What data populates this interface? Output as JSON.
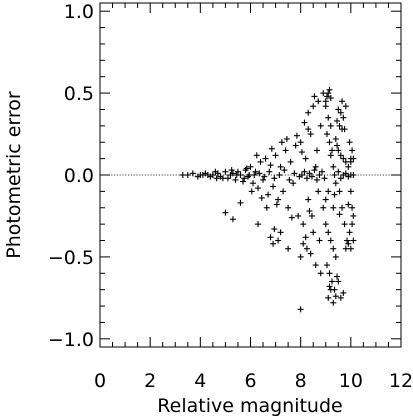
{
  "chart_data": {
    "type": "scatter",
    "title": "",
    "xlabel": "Relative magnitude",
    "ylabel": "Photometric error",
    "xlim": [
      0,
      12
    ],
    "ylim": [
      -1.05,
      1.05
    ],
    "xticks": [
      "0",
      "2",
      "4",
      "6",
      "8",
      "10",
      "12"
    ],
    "yticks": [
      "−1.0",
      "−0.5",
      "0.0",
      "0.5",
      "1.0"
    ],
    "reference_line_y": 0.0,
    "grid": false,
    "marker": "plus",
    "points": [
      [
        3.3,
        0.0
      ],
      [
        3.5,
        0.0
      ],
      [
        3.7,
        0.01
      ],
      [
        3.9,
        -0.01
      ],
      [
        4.0,
        0.0
      ],
      [
        4.2,
        0.01
      ],
      [
        4.4,
        -0.01
      ],
      [
        4.5,
        0.0
      ],
      [
        4.7,
        0.01
      ],
      [
        4.8,
        -0.01
      ],
      [
        5.0,
        0.02
      ],
      [
        5.1,
        -0.02
      ],
      [
        5.2,
        0.0
      ],
      [
        5.3,
        0.01
      ],
      [
        5.4,
        -0.03
      ],
      [
        5.5,
        0.02
      ],
      [
        5.6,
        0.0
      ],
      [
        5.7,
        -0.04
      ],
      [
        5.8,
        0.03
      ],
      [
        5.9,
        -0.01
      ],
      [
        4.1,
        0.0
      ],
      [
        4.6,
        0.02
      ],
      [
        4.9,
        -0.02
      ],
      [
        5.25,
        0.03
      ],
      [
        5.45,
        0.0
      ],
      [
        5.75,
        -0.02
      ],
      [
        5.85,
        0.04
      ],
      [
        5.95,
        0.0
      ],
      [
        4.3,
        0.0
      ],
      [
        4.65,
        -0.02
      ],
      [
        6.0,
        0.05
      ],
      [
        6.1,
        -0.05
      ],
      [
        6.2,
        0.02
      ],
      [
        6.3,
        -0.08
      ],
      [
        6.4,
        0.08
      ],
      [
        6.5,
        -0.03
      ],
      [
        6.6,
        0.1
      ],
      [
        6.7,
        -0.12
      ],
      [
        6.8,
        0.06
      ],
      [
        6.9,
        -0.07
      ],
      [
        7.0,
        0.12
      ],
      [
        7.1,
        -0.15
      ],
      [
        7.2,
        0.05
      ],
      [
        7.3,
        -0.1
      ],
      [
        7.4,
        0.15
      ],
      [
        7.5,
        -0.2
      ],
      [
        7.6,
        0.08
      ],
      [
        7.7,
        -0.05
      ],
      [
        7.8,
        0.18
      ],
      [
        7.9,
        -0.25
      ],
      [
        6.15,
        0.0
      ],
      [
        6.35,
        0.01
      ],
      [
        6.55,
        -0.01
      ],
      [
        6.75,
        0.02
      ],
      [
        6.95,
        -0.02
      ],
      [
        7.15,
        0.0
      ],
      [
        7.35,
        0.03
      ],
      [
        7.55,
        -0.03
      ],
      [
        7.75,
        0.01
      ],
      [
        7.95,
        -0.01
      ],
      [
        6.25,
        0.12
      ],
      [
        6.45,
        -0.14
      ],
      [
        6.85,
        0.16
      ],
      [
        7.05,
        -0.18
      ],
      [
        7.45,
        0.22
      ],
      [
        7.65,
        -0.26
      ],
      [
        7.85,
        0.24
      ],
      [
        6.65,
        -0.2
      ],
      [
        7.25,
        0.2
      ],
      [
        6.05,
        -0.1
      ],
      [
        5.0,
        -0.23
      ],
      [
        5.3,
        -0.27
      ],
      [
        5.6,
        -0.17
      ],
      [
        6.3,
        -0.3
      ],
      [
        6.8,
        -0.38
      ],
      [
        6.9,
        -0.42
      ],
      [
        7.2,
        -0.35
      ],
      [
        7.5,
        -0.45
      ],
      [
        7.1,
        -0.4
      ],
      [
        6.95,
        -0.33
      ],
      [
        8.0,
        0.2
      ],
      [
        8.1,
        -0.3
      ],
      [
        8.2,
        0.1
      ],
      [
        8.3,
        -0.15
      ],
      [
        8.4,
        0.25
      ],
      [
        8.5,
        -0.35
      ],
      [
        8.6,
        0.05
      ],
      [
        8.7,
        -0.1
      ],
      [
        8.8,
        0.3
      ],
      [
        8.9,
        -0.2
      ],
      [
        8.05,
        0.0
      ],
      [
        8.15,
        0.02
      ],
      [
        8.25,
        -0.02
      ],
      [
        8.35,
        0.01
      ],
      [
        8.45,
        -0.01
      ],
      [
        8.55,
        0.03
      ],
      [
        8.65,
        -0.03
      ],
      [
        8.75,
        0.0
      ],
      [
        8.85,
        0.02
      ],
      [
        8.95,
        -0.02
      ],
      [
        8.0,
        -0.5
      ],
      [
        8.1,
        -0.42
      ],
      [
        8.2,
        -0.38
      ],
      [
        8.3,
        0.38
      ],
      [
        8.4,
        -0.48
      ],
      [
        8.5,
        0.42
      ],
      [
        8.6,
        -0.55
      ],
      [
        8.7,
        0.45
      ],
      [
        8.8,
        -0.6
      ],
      [
        8.9,
        0.5
      ],
      [
        8.0,
        -0.82
      ],
      [
        8.3,
        0.28
      ],
      [
        8.45,
        -0.25
      ],
      [
        8.65,
        0.15
      ],
      [
        8.15,
        0.32
      ],
      [
        8.25,
        -0.45
      ],
      [
        8.55,
        0.48
      ],
      [
        8.75,
        -0.4
      ],
      [
        8.05,
        0.14
      ],
      [
        8.35,
        -0.22
      ],
      [
        9.0,
        0.45
      ],
      [
        9.05,
        0.48
      ],
      [
        9.1,
        0.5
      ],
      [
        9.15,
        0.52
      ],
      [
        9.2,
        0.47
      ],
      [
        9.0,
        0.42
      ],
      [
        9.1,
        0.35
      ],
      [
        9.2,
        0.3
      ],
      [
        9.05,
        0.25
      ],
      [
        9.15,
        0.2
      ],
      [
        9.0,
        -0.3
      ],
      [
        9.1,
        -0.35
      ],
      [
        9.2,
        -0.4
      ],
      [
        9.3,
        -0.45
      ],
      [
        9.4,
        -0.5
      ],
      [
        9.05,
        -0.55
      ],
      [
        9.15,
        -0.6
      ],
      [
        9.25,
        -0.65
      ],
      [
        9.35,
        -0.7
      ],
      [
        9.45,
        -0.62
      ],
      [
        9.5,
        0.15
      ],
      [
        9.6,
        0.12
      ],
      [
        9.7,
        0.1
      ],
      [
        9.8,
        0.08
      ],
      [
        9.9,
        0.05
      ],
      [
        10.0,
        0.1
      ],
      [
        9.55,
        -0.1
      ],
      [
        9.65,
        -0.2
      ],
      [
        9.75,
        -0.3
      ],
      [
        9.85,
        -0.4
      ],
      [
        9.3,
        0.05
      ],
      [
        9.4,
        -0.05
      ],
      [
        9.5,
        0.02
      ],
      [
        9.6,
        -0.02
      ],
      [
        9.7,
        0.0
      ],
      [
        9.8,
        0.01
      ],
      [
        9.9,
        -0.01
      ],
      [
        10.0,
        0.0
      ],
      [
        10.1,
        0.0
      ],
      [
        9.35,
        0.0
      ],
      [
        9.0,
        -0.15
      ],
      [
        9.1,
        -0.1
      ],
      [
        9.2,
        0.12
      ],
      [
        9.3,
        -0.2
      ],
      [
        9.4,
        0.22
      ],
      [
        9.25,
        0.15
      ],
      [
        9.35,
        -0.12
      ],
      [
        9.45,
        0.18
      ],
      [
        9.55,
        -0.24
      ],
      [
        9.65,
        0.28
      ],
      [
        9.1,
        -0.75
      ],
      [
        9.2,
        -0.7
      ],
      [
        9.3,
        -0.78
      ],
      [
        9.15,
        -0.68
      ],
      [
        9.6,
        -0.75
      ],
      [
        9.7,
        -0.72
      ],
      [
        9.5,
        -0.65
      ],
      [
        9.4,
        -0.74
      ],
      [
        9.8,
        -0.45
      ],
      [
        9.9,
        -0.42
      ],
      [
        9.5,
        0.4
      ],
      [
        9.6,
        0.38
      ],
      [
        9.7,
        0.35
      ],
      [
        9.8,
        0.42
      ],
      [
        9.55,
        0.3
      ],
      [
        9.45,
        0.33
      ],
      [
        9.65,
        0.45
      ],
      [
        9.75,
        0.28
      ],
      [
        10.0,
        -0.45
      ],
      [
        10.05,
        -0.3
      ],
      [
        10.0,
        0.08
      ],
      [
        10.1,
        0.1
      ],
      [
        10.0,
        -0.1
      ],
      [
        10.05,
        -0.2
      ],
      [
        10.1,
        -0.25
      ],
      [
        9.95,
        -0.35
      ],
      [
        10.1,
        -0.4
      ],
      [
        9.95,
        0.2
      ],
      [
        10.05,
        0.15
      ],
      [
        9.9,
        -0.18
      ]
    ]
  }
}
